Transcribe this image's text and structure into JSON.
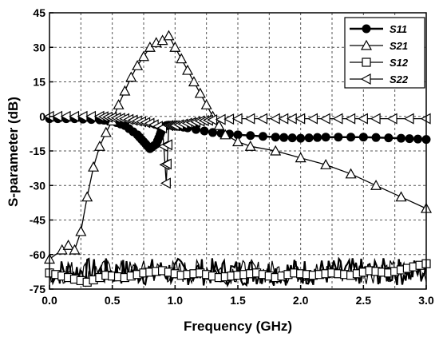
{
  "chart_data": {
    "type": "line",
    "xlabel": "Frequency (GHz)",
    "ylabel": "S-parameter (dB)",
    "xlim": [
      0.0,
      3.0
    ],
    "ylim": [
      -75,
      45
    ],
    "xticks": [
      "0.0",
      "0.5",
      "1.0",
      "1.5",
      "2.0",
      "2.5",
      "3.0"
    ],
    "yticks": [
      "-75",
      "-60",
      "-45",
      "-30",
      "-15",
      "0",
      "15",
      "30",
      "45"
    ],
    "grid": true,
    "legend_position": "top-right",
    "series": [
      {
        "name": "S11",
        "marker": "filled-circle",
        "x": [
          0.0,
          0.2,
          0.4,
          0.5,
          0.6,
          0.7,
          0.75,
          0.8,
          0.85,
          0.88,
          0.9,
          0.93,
          0.95,
          1.0,
          1.1,
          1.3,
          1.5,
          1.8,
          2.0,
          2.2,
          2.5,
          2.8,
          3.0
        ],
        "y": [
          -1,
          -1,
          -1.5,
          -2,
          -4,
          -8,
          -11,
          -14,
          -12,
          -8,
          -5,
          -4,
          -3.8,
          -4,
          -5,
          -7,
          -8,
          -9,
          -9.5,
          -9,
          -9,
          -9.5,
          -10
        ]
      },
      {
        "name": "S21",
        "marker": "open-triangle-up",
        "x": [
          0.0,
          0.1,
          0.15,
          0.2,
          0.25,
          0.3,
          0.35,
          0.4,
          0.45,
          0.5,
          0.55,
          0.6,
          0.65,
          0.7,
          0.75,
          0.8,
          0.85,
          0.9,
          0.95,
          1.0,
          1.05,
          1.1,
          1.15,
          1.2,
          1.25,
          1.3,
          1.35,
          1.4,
          1.5,
          1.6,
          1.8,
          2.0,
          2.2,
          2.4,
          2.6,
          2.8,
          3.0
        ],
        "y": [
          -62,
          -58,
          -56,
          -58,
          -50,
          -35,
          -22,
          -13,
          -7,
          -2,
          5,
          11,
          17,
          22,
          26,
          30,
          32,
          33,
          35,
          30,
          25,
          20,
          15,
          10,
          5,
          0,
          -4,
          -8,
          -11,
          -13,
          -15,
          -18,
          -21,
          -25,
          -30,
          -35,
          -40
        ]
      },
      {
        "name": "S12",
        "marker": "open-square",
        "x": [
          0.0,
          0.15,
          0.3,
          0.45,
          0.6,
          0.75,
          0.9,
          1.05,
          1.2,
          1.35,
          1.5,
          1.65,
          1.8,
          1.95,
          2.1,
          2.25,
          2.4,
          2.55,
          2.7,
          2.85,
          3.0
        ],
        "y": [
          -68,
          -70,
          -72,
          -69,
          -70,
          -68,
          -67,
          -69,
          -68,
          -70,
          -69,
          -68,
          -70,
          -68,
          -69,
          -68,
          -69,
          -67,
          -68,
          -66,
          -64
        ]
      },
      {
        "name": "S22",
        "marker": "open-triangle-left",
        "x": [
          0.0,
          0.2,
          0.4,
          0.5,
          0.6,
          0.7,
          0.8,
          0.9,
          0.93,
          0.95,
          1.0,
          1.1,
          1.2,
          1.3,
          1.5,
          1.8,
          2.0,
          2.3,
          2.6,
          3.0
        ],
        "y": [
          0,
          0,
          0,
          -0.5,
          -1,
          -2,
          -3,
          -5,
          -29,
          -4,
          -4,
          -3,
          -2,
          -1.5,
          -1,
          -1,
          -1,
          -1,
          -1,
          -1
        ]
      }
    ],
    "noise_series": {
      "x_start": 0.0,
      "x_end": 3.0,
      "y_low": -75,
      "y_high": -60
    }
  }
}
